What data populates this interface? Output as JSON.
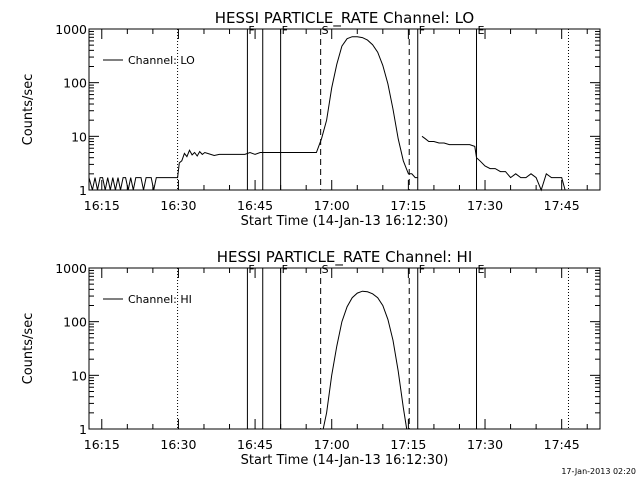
{
  "chart_data": [
    {
      "type": "line",
      "title": "HESSI PARTICLE_RATE Channel: LO",
      "xlabel": "Start Time (14-Jan-13 16:12:30)",
      "ylabel": "Counts/sec",
      "y_scale": "log",
      "xlim": [
        "16:12:30",
        "17:52:30"
      ],
      "ylim": [
        1,
        1000
      ],
      "x_tick_labels": [
        "16:15",
        "16:30",
        "16:45",
        "17:00",
        "17:15",
        "17:30",
        "17:45"
      ],
      "y_tick_labels": [
        "1",
        "10",
        "100",
        "1000"
      ],
      "legend": {
        "position": "top-left",
        "entries": [
          "Channel: LO"
        ]
      },
      "markers": [
        {
          "label": "F",
          "time": "16:43:30",
          "style": "solid"
        },
        {
          "label": "",
          "time": "16:46:30",
          "style": "solid"
        },
        {
          "label": "F",
          "time": "16:50:00",
          "style": "solid"
        },
        {
          "label": "S",
          "time": "16:57:50",
          "style": "dashed"
        },
        {
          "label": "",
          "time": "17:15:10",
          "style": "dashed"
        },
        {
          "label": "F",
          "time": "17:16:50",
          "style": "solid"
        },
        {
          "label": "E",
          "time": "17:28:20",
          "style": "solid"
        },
        {
          "label": "",
          "time": "16:29:50",
          "style": "dotted"
        },
        {
          "label": "",
          "time": "17:46:20",
          "style": "dotted"
        }
      ],
      "series": [
        {
          "name": "Channel: LO",
          "segments": [
            {
              "x": [
                "16:12:30",
                "16:13:10",
                "16:13:40",
                "16:14:10",
                "16:14:40",
                "16:15:10",
                "16:15:40",
                "16:16:10",
                "16:16:40",
                "16:17:10",
                "16:17:40",
                "16:18:10",
                "16:18:40",
                "16:19:10",
                "16:19:40",
                "16:20:10",
                "16:20:40",
                "16:21:10",
                "16:21:40",
                "16:22:10",
                "16:22:40",
                "16:23:10",
                "16:23:40",
                "16:24:10",
                "16:24:40",
                "16:25:10",
                "16:25:40",
                "16:26:10",
                "16:26:40",
                "16:27:10",
                "16:27:40",
                "16:28:10",
                "16:28:40",
                "16:29:10",
                "16:29:50",
                "16:30:10",
                "16:30:40",
                "16:31:10",
                "16:31:40",
                "16:32:10",
                "16:32:40",
                "16:33:10",
                "16:33:40",
                "16:34:10",
                "16:34:40",
                "16:35:10",
                "16:36:00",
                "16:37:00",
                "16:38:00",
                "16:39:00",
                "16:40:00",
                "16:41:00",
                "16:42:00",
                "16:43:00",
                "16:44:00",
                "16:45:00",
                "16:46:00",
                "16:47:00",
                "16:48:00",
                "16:49:00",
                "16:50:00",
                "16:51:00",
                "16:52:00",
                "16:53:00",
                "16:54:00",
                "16:55:00",
                "16:56:00",
                "16:57:00",
                "16:58:00",
                "16:59:00",
                "17:00:00",
                "17:01:00",
                "17:02:00",
                "17:03:00",
                "17:04:00",
                "17:05:00",
                "17:06:00",
                "17:07:00",
                "17:08:00",
                "17:09:00",
                "17:10:00",
                "17:11:00",
                "17:12:00",
                "17:13:00",
                "17:14:00",
                "17:15:00",
                "17:15:40",
                "17:16:20",
                "17:16:50"
              ],
              "y": [
                1.7,
                1.0,
                1.7,
                1.0,
                1.7,
                1.7,
                1.0,
                1.7,
                1.0,
                1.7,
                1.0,
                1.7,
                1.0,
                1.7,
                1.7,
                1.0,
                1.7,
                1.0,
                1.7,
                1.7,
                1.7,
                1.0,
                1.7,
                1.7,
                1.7,
                1.0,
                1.7,
                1.7,
                1.7,
                1.7,
                1.7,
                1.7,
                1.7,
                1.7,
                1.7,
                3.2,
                3.5,
                4.8,
                4.2,
                5.5,
                4.5,
                5.0,
                4.3,
                5.2,
                4.6,
                5.0,
                4.7,
                4.4,
                4.6,
                4.6,
                4.6,
                4.6,
                4.6,
                4.6,
                5.0,
                4.6,
                5.0,
                5.0,
                5.0,
                5.0,
                5.0,
                5.0,
                5.0,
                5.0,
                5.0,
                5.0,
                5.0,
                5.0,
                9.0,
                20,
                80,
                220,
                480,
                660,
                720,
                720,
                690,
                620,
                510,
                370,
                210,
                95,
                32,
                9,
                3.5,
                2.0,
                2.0,
                1.7,
                1.7
              ]
            },
            {
              "x": [
                "17:17:40",
                "17:18:20",
                "17:19:00",
                "17:20:00",
                "17:21:00",
                "17:22:00",
                "17:23:00",
                "17:24:00",
                "17:25:00",
                "17:26:00",
                "17:27:00",
                "17:28:00",
                "17:28:20",
                "17:29:00",
                "17:30:00",
                "17:31:00",
                "17:32:00",
                "17:33:00",
                "17:34:00",
                "17:35:00",
                "17:36:00",
                "17:37:00",
                "17:38:00",
                "17:39:00",
                "17:40:00",
                "17:41:00",
                "17:42:00",
                "17:43:00",
                "17:44:00",
                "17:45:00",
                "17:45:40"
              ],
              "y": [
                10,
                9,
                8,
                8,
                7.5,
                7.5,
                7,
                7,
                7,
                7,
                7,
                6.5,
                4.0,
                3.5,
                2.8,
                2.5,
                2.5,
                2.2,
                2.2,
                1.7,
                2.0,
                1.7,
                1.7,
                2.0,
                1.7,
                1.0,
                2.0,
                1.7,
                1.7,
                1.7,
                1.0
              ]
            }
          ]
        }
      ]
    },
    {
      "type": "line",
      "title": "HESSI PARTICLE_RATE Channel: HI",
      "xlabel": "Start Time (14-Jan-13 16:12:30)",
      "ylabel": "Counts/sec",
      "y_scale": "log",
      "xlim": [
        "16:12:30",
        "17:52:30"
      ],
      "ylim": [
        1,
        1000
      ],
      "x_tick_labels": [
        "16:15",
        "16:30",
        "16:45",
        "17:00",
        "17:15",
        "17:30",
        "17:45"
      ],
      "y_tick_labels": [
        "1",
        "10",
        "100",
        "1000"
      ],
      "legend": {
        "position": "top-left",
        "entries": [
          "Channel: HI"
        ]
      },
      "markers": [
        {
          "label": "F",
          "time": "16:43:30",
          "style": "solid"
        },
        {
          "label": "",
          "time": "16:46:30",
          "style": "solid"
        },
        {
          "label": "F",
          "time": "16:50:00",
          "style": "solid"
        },
        {
          "label": "S",
          "time": "16:57:50",
          "style": "dashed"
        },
        {
          "label": "",
          "time": "17:15:10",
          "style": "dashed"
        },
        {
          "label": "F",
          "time": "17:16:50",
          "style": "solid"
        },
        {
          "label": "E",
          "time": "17:28:20",
          "style": "solid"
        },
        {
          "label": "",
          "time": "16:29:50",
          "style": "dotted"
        },
        {
          "label": "",
          "time": "17:46:20",
          "style": "dotted"
        }
      ],
      "series": [
        {
          "name": "Channel: HI",
          "segments": [
            {
              "x": [
                "16:58:20",
                "16:59:00",
                "17:00:00",
                "17:01:00",
                "17:02:00",
                "17:03:00",
                "17:04:00",
                "17:05:00",
                "17:06:00",
                "17:07:00",
                "17:08:00",
                "17:09:00",
                "17:10:00",
                "17:11:00",
                "17:12:00",
                "17:13:00",
                "17:14:00",
                "17:14:40"
              ],
              "y": [
                1.0,
                2.0,
                10,
                35,
                100,
                190,
                280,
                340,
                370,
                360,
                330,
                280,
                200,
                110,
                45,
                12,
                2.5,
                1.0
              ]
            }
          ]
        }
      ]
    }
  ],
  "footer": {
    "timestamp": "17-Jan-2013 02:20"
  }
}
